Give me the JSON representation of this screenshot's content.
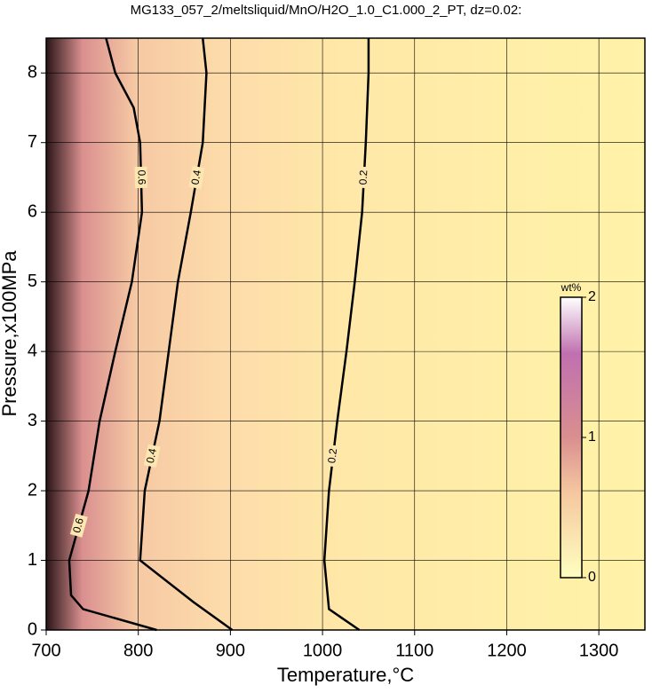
{
  "chart_data": {
    "type": "contour",
    "title": "MG133_057_2/meltsliquid/MnO/H2O_1.0_C1.000_2_PT, dz=0.02:",
    "x_label": "Temperature,°C",
    "y_label": "Pressure,x100MPa",
    "xlim": [
      700,
      1350
    ],
    "ylim": [
      0,
      8.5
    ],
    "xticks": [
      700,
      800,
      900,
      1000,
      1100,
      1200,
      1300
    ],
    "yticks": [
      0,
      1,
      2,
      3,
      4,
      5,
      6,
      7,
      8
    ],
    "grid": true,
    "series": [
      {
        "level": 0.2,
        "color": "#000000",
        "x": [
          1040,
          1007,
          1002,
          1007,
          1016,
          1026,
          1035,
          1043,
          1047,
          1050,
          1050
        ],
        "y": [
          0,
          0.3,
          1,
          2,
          3,
          4,
          5,
          6,
          7,
          8,
          8.5
        ]
      },
      {
        "level": 0.4,
        "color": "#000000",
        "x": [
          902,
          860,
          802,
          807,
          823,
          833,
          843,
          857,
          870,
          874,
          870
        ],
        "y": [
          0,
          0.4,
          1,
          2,
          3,
          4,
          5,
          6,
          7,
          8,
          8.5
        ]
      },
      {
        "level": 0.6,
        "color": "#000000",
        "x": [
          820,
          740,
          727,
          725,
          746,
          758,
          775,
          793,
          804,
          802,
          795,
          775,
          765
        ],
        "y": [
          0,
          0.3,
          0.5,
          1,
          2,
          3,
          4,
          5,
          6,
          7,
          7.5,
          8,
          8.5
        ]
      }
    ],
    "colorbar": {
      "label": "wt%",
      "lim": [
        0,
        2
      ],
      "ticks": [
        0,
        1,
        2
      ]
    }
  }
}
